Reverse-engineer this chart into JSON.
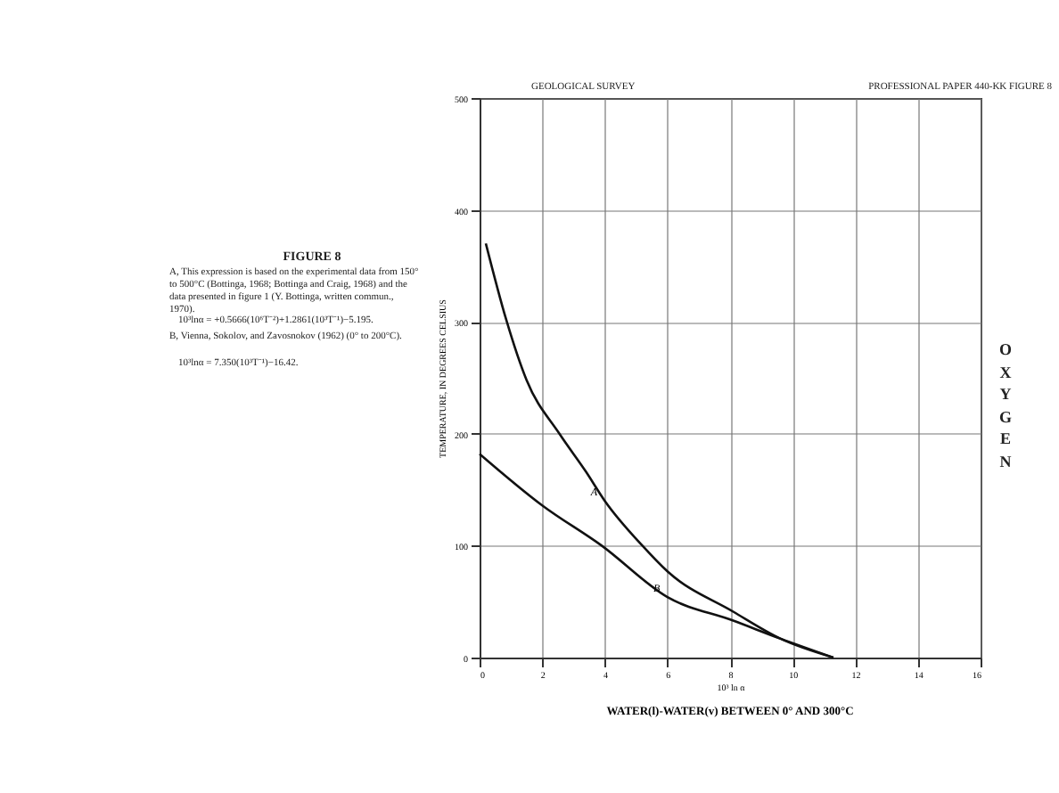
{
  "chart_data": {
    "type": "line",
    "title": "WATER(l)-WATER(v) BETWEEN 0° AND 300°C",
    "xlabel": "10³ ln α",
    "ylabel": "TEMPERATURE, IN DEGREES CELSIUS",
    "annotations": [
      "GEOLOGICAL SURVEY",
      "PROFESSIONAL PAPER 440-KK   FIGURE 8",
      "FIGURE 8",
      "A, This expression is based on the experimental data from 150° to 500°C (Bottinga, 1968; Bottinga and Craig, 1968) and the data presented in figure 1 (Y. Bottinga, written commun., 1970).",
      "10³lnα = +0.5666(10⁶T⁻²)+1.2861(10³T⁻¹)−5.195.",
      "B, Vienna, Sokolov, and Zavosnokov (1962)    (0° to 200°C).",
      "10³lnα = 7.350(10³T⁻¹)−16.42.",
      "OXYGEN"
    ],
    "series": [
      {
        "name": "A",
        "color": "#111111",
        "x": [
          0.2,
          0.85,
          1.5,
          2.55,
          3.4,
          4,
          5.2,
          6,
          8.1,
          9.6,
          11.3
        ],
        "values": [
          370,
          302,
          248,
          200,
          166,
          140,
          100,
          77,
          41,
          17,
          0
        ]
      },
      {
        "name": "B",
        "color": "#111111",
        "x": [
          0,
          2,
          3.9,
          6,
          8.1,
          9.6,
          11.3
        ],
        "values": [
          182,
          136,
          100,
          54,
          33,
          17,
          0
        ]
      }
    ],
    "xlim": [
      0,
      16
    ],
    "xticks": [
      0,
      2,
      4,
      6,
      8,
      10,
      12,
      14,
      16
    ],
    "ylim": [
      0,
      500
    ],
    "yticks": [
      0,
      100,
      200,
      300,
      400,
      500
    ],
    "grid": true,
    "marker": "none",
    "line_style": "solid"
  }
}
